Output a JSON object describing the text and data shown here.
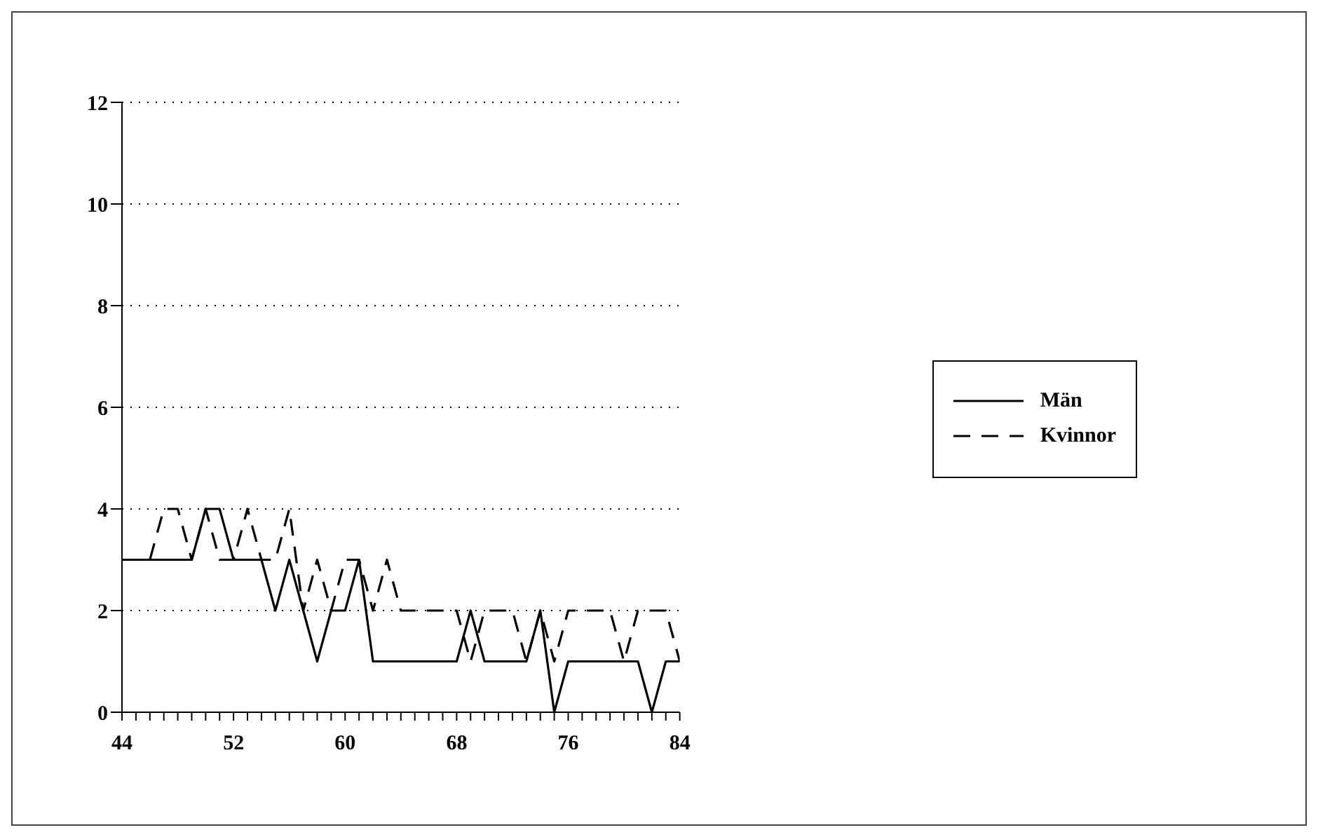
{
  "chart_data": {
    "type": "line",
    "x": [
      44,
      45,
      46,
      47,
      48,
      49,
      50,
      51,
      52,
      53,
      54,
      55,
      56,
      57,
      58,
      59,
      60,
      61,
      62,
      63,
      64,
      65,
      66,
      67,
      68,
      69,
      70,
      71,
      72,
      73,
      74,
      75,
      76,
      77,
      78,
      79,
      80,
      81,
      82,
      83,
      84
    ],
    "series": [
      {
        "name": "Män",
        "color": "#000000",
        "line_style": "solid",
        "values": [
          3,
          3,
          3,
          3,
          3,
          3,
          4,
          4,
          3,
          3,
          3,
          2,
          3,
          2,
          1,
          2,
          2,
          3,
          1,
          1,
          1,
          1,
          1,
          1,
          1,
          2,
          1,
          1,
          1,
          1,
          2,
          0,
          1,
          1,
          1,
          1,
          1,
          1,
          0,
          1,
          1
        ]
      },
      {
        "name": "Kvinnor",
        "color": "#000000",
        "line_style": "dashed",
        "values": [
          3,
          3,
          3,
          4,
          4,
          3,
          4,
          3,
          3,
          4,
          3,
          3,
          4,
          2,
          3,
          2,
          3,
          3,
          2,
          3,
          2,
          2,
          2,
          2,
          2,
          1,
          2,
          2,
          2,
          1,
          2,
          1,
          2,
          2,
          2,
          2,
          1,
          2,
          2,
          2,
          1
        ]
      }
    ],
    "xlim": [
      44,
      84
    ],
    "xticks": [
      44,
      {
        "value": 45,
        "label": null
      },
      {
        "value": 46,
        "label": null
      },
      {
        "value": 47,
        "label": null
      },
      {
        "value": 48,
        "label": null
      },
      {
        "value": 49,
        "label": null
      },
      {
        "value": 50,
        "label": null
      },
      {
        "value": 51,
        "label": null
      },
      52,
      {
        "value": 53,
        "label": null
      },
      {
        "value": 54,
        "label": null
      },
      {
        "value": 55,
        "label": null
      },
      {
        "value": 56,
        "label": null
      },
      {
        "value": 57,
        "label": null
      },
      {
        "value": 58,
        "label": null
      },
      {
        "value": 59,
        "label": null
      },
      60,
      {
        "value": 61,
        "label": null
      },
      {
        "value": 62,
        "label": null
      },
      {
        "value": 63,
        "label": null
      },
      {
        "value": 64,
        "label": null
      },
      {
        "value": 65,
        "label": null
      },
      {
        "value": 66,
        "label": null
      },
      {
        "value": 67,
        "label": null
      },
      68,
      {
        "value": 69,
        "label": null
      },
      {
        "value": 70,
        "label": null
      },
      {
        "value": 71,
        "label": null
      },
      {
        "value": 72,
        "label": null
      },
      {
        "value": 73,
        "label": null
      },
      {
        "value": 74,
        "label": null
      },
      {
        "value": 75,
        "label": null
      },
      76,
      {
        "value": 77,
        "label": null
      },
      {
        "value": 78,
        "label": null
      },
      {
        "value": 79,
        "label": null
      },
      {
        "value": 80,
        "label": null
      },
      {
        "value": 81,
        "label": null
      },
      {
        "value": 82,
        "label": null
      },
      {
        "value": 83,
        "label": null
      },
      84
    ],
    "ylim": [
      0,
      12
    ],
    "yticks": [
      0,
      2,
      4,
      6,
      8,
      10,
      12
    ],
    "grid": "y",
    "legend": "right",
    "marker": "none"
  }
}
